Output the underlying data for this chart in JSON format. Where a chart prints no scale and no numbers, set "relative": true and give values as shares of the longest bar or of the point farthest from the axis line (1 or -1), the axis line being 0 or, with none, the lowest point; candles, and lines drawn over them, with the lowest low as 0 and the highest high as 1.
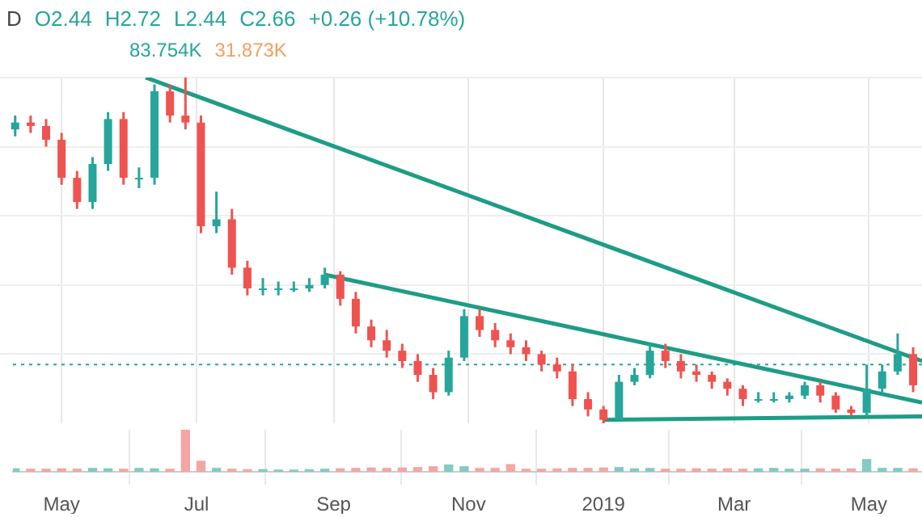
{
  "chart_data": [
    {
      "type": "candlestick",
      "relative": true,
      "grid": true,
      "marker": "none",
      "tick_labels": false,
      "annotations": [
        "D",
        "O2.44",
        "H2.72",
        "L2.44",
        "C2.66",
        "+0.26 (+10.78%)"
      ],
      "xlim": [
        "2018-04-09",
        "2019-05-25"
      ],
      "x": [
        "2018-04-10",
        "2018-04-17",
        "2018-04-24",
        "2018-05-01",
        "2018-05-08",
        "2018-05-15",
        "2018-05-22",
        "2018-05-29",
        "2018-06-05",
        "2018-06-12",
        "2018-06-19",
        "2018-06-26",
        "2018-07-03",
        "2018-07-10",
        "2018-07-17",
        "2018-07-24",
        "2018-07-31",
        "2018-08-07",
        "2018-08-14",
        "2018-08-21",
        "2018-08-28",
        "2018-09-04",
        "2018-09-11",
        "2018-09-18",
        "2018-09-25",
        "2018-10-02",
        "2018-10-09",
        "2018-10-16",
        "2018-10-23",
        "2018-10-30",
        "2018-11-06",
        "2018-11-13",
        "2018-11-20",
        "2018-11-27",
        "2018-12-04",
        "2018-12-11",
        "2018-12-18",
        "2018-12-25",
        "2019-01-01",
        "2019-01-08",
        "2019-01-15",
        "2019-01-22",
        "2019-01-29",
        "2019-02-05",
        "2019-02-12",
        "2019-02-19",
        "2019-02-26",
        "2019-03-05",
        "2019-03-12",
        "2019-03-19",
        "2019-03-26",
        "2019-04-02",
        "2019-04-09",
        "2019-04-16",
        "2019-04-23",
        "2019-04-30",
        "2019-05-07",
        "2019-05-14",
        "2019-05-21"
      ],
      "ohlc": [
        [
          0.85,
          0.89,
          0.83,
          0.87
        ],
        [
          0.87,
          0.89,
          0.84,
          0.86
        ],
        [
          0.86,
          0.88,
          0.8,
          0.82
        ],
        [
          0.82,
          0.84,
          0.69,
          0.71
        ],
        [
          0.71,
          0.73,
          0.62,
          0.64
        ],
        [
          0.64,
          0.77,
          0.62,
          0.75
        ],
        [
          0.75,
          0.9,
          0.73,
          0.88
        ],
        [
          0.88,
          0.9,
          0.69,
          0.71
        ],
        [
          0.71,
          0.74,
          0.68,
          0.71
        ],
        [
          0.71,
          0.98,
          0.69,
          0.96
        ],
        [
          0.96,
          0.98,
          0.87,
          0.89
        ],
        [
          0.89,
          1.0,
          0.85,
          0.87
        ],
        [
          0.87,
          0.89,
          0.55,
          0.57
        ],
        [
          0.57,
          0.67,
          0.55,
          0.59
        ],
        [
          0.59,
          0.62,
          0.43,
          0.45
        ],
        [
          0.45,
          0.47,
          0.37,
          0.39
        ],
        [
          0.39,
          0.42,
          0.37,
          0.39
        ],
        [
          0.39,
          0.41,
          0.37,
          0.39
        ],
        [
          0.39,
          0.41,
          0.38,
          0.39
        ],
        [
          0.39,
          0.42,
          0.38,
          0.4
        ],
        [
          0.4,
          0.45,
          0.39,
          0.43
        ],
        [
          0.43,
          0.44,
          0.34,
          0.36
        ],
        [
          0.36,
          0.38,
          0.26,
          0.28
        ],
        [
          0.28,
          0.3,
          0.22,
          0.24
        ],
        [
          0.24,
          0.27,
          0.19,
          0.21
        ],
        [
          0.21,
          0.23,
          0.16,
          0.18
        ],
        [
          0.18,
          0.2,
          0.12,
          0.14
        ],
        [
          0.14,
          0.16,
          0.07,
          0.09
        ],
        [
          0.09,
          0.21,
          0.08,
          0.19
        ],
        [
          0.19,
          0.33,
          0.18,
          0.31
        ],
        [
          0.31,
          0.33,
          0.25,
          0.27
        ],
        [
          0.27,
          0.29,
          0.22,
          0.24
        ],
        [
          0.24,
          0.26,
          0.2,
          0.22
        ],
        [
          0.22,
          0.24,
          0.18,
          0.2
        ],
        [
          0.2,
          0.21,
          0.15,
          0.17
        ],
        [
          0.17,
          0.19,
          0.13,
          0.15
        ],
        [
          0.15,
          0.17,
          0.05,
          0.07
        ],
        [
          0.07,
          0.09,
          0.02,
          0.04
        ],
        [
          0.04,
          0.05,
          0.0,
          0.01
        ],
        [
          0.01,
          0.14,
          0.01,
          0.12
        ],
        [
          0.12,
          0.16,
          0.11,
          0.14
        ],
        [
          0.14,
          0.23,
          0.13,
          0.21
        ],
        [
          0.21,
          0.23,
          0.16,
          0.18
        ],
        [
          0.18,
          0.2,
          0.13,
          0.15
        ],
        [
          0.15,
          0.17,
          0.12,
          0.14
        ],
        [
          0.14,
          0.15,
          0.1,
          0.12
        ],
        [
          0.12,
          0.13,
          0.08,
          0.1
        ],
        [
          0.1,
          0.11,
          0.05,
          0.07
        ],
        [
          0.07,
          0.09,
          0.06,
          0.07
        ],
        [
          0.07,
          0.09,
          0.06,
          0.07
        ],
        [
          0.07,
          0.09,
          0.06,
          0.08
        ],
        [
          0.08,
          0.12,
          0.07,
          0.11
        ],
        [
          0.11,
          0.12,
          0.06,
          0.08
        ],
        [
          0.08,
          0.09,
          0.03,
          0.04
        ],
        [
          0.04,
          0.05,
          0.02,
          0.03
        ],
        [
          0.03,
          0.17,
          0.02,
          0.1
        ],
        [
          0.1,
          0.17,
          0.09,
          0.15
        ],
        [
          0.15,
          0.26,
          0.14,
          0.2
        ],
        [
          0.2,
          0.22,
          0.09,
          0.11
        ]
      ],
      "ref_lines": [
        {
          "axis": "y",
          "value": 0.17,
          "color": "#26a69a",
          "line_style": "dotted"
        }
      ],
      "series": [
        {
          "type": "line",
          "color": "#1f9c85",
          "x": [
            "2018-06-08",
            "2019-05-25"
          ],
          "values": [
            1.0,
            0.18
          ]
        },
        {
          "type": "line",
          "color": "#1f9c85",
          "x": [
            "2018-08-28",
            "2019-05-25"
          ],
          "values": [
            0.43,
            0.06
          ]
        },
        {
          "type": "line",
          "color": "#1f9c85",
          "x": [
            "2019-01-01",
            "2019-05-25"
          ],
          "values": [
            0.01,
            0.02
          ]
        }
      ]
    },
    {
      "type": "bar",
      "relative": true,
      "grid": "x",
      "tick_labels": "x",
      "annotations": [
        "83.754K",
        "31.873K"
      ],
      "xlim": [
        "2018-04-09",
        "2019-05-25"
      ],
      "xticks": [
        {
          "value": "2018-05-01",
          "label": "May"
        },
        {
          "value": "2018-07-01",
          "label": "Jul"
        },
        {
          "value": "2018-09-01",
          "label": "Sep"
        },
        {
          "value": "2018-11-01",
          "label": "Nov"
        },
        {
          "value": "2019-01-01",
          "label": "2019"
        },
        {
          "value": "2019-03-01",
          "label": "Mar"
        },
        {
          "value": "2019-05-01",
          "label": "May"
        }
      ],
      "x": [
        "2018-04-10",
        "2018-04-17",
        "2018-04-24",
        "2018-05-01",
        "2018-05-08",
        "2018-05-15",
        "2018-05-22",
        "2018-05-29",
        "2018-06-05",
        "2018-06-12",
        "2018-06-19",
        "2018-06-26",
        "2018-07-03",
        "2018-07-10",
        "2018-07-17",
        "2018-07-24",
        "2018-07-31",
        "2018-08-07",
        "2018-08-14",
        "2018-08-21",
        "2018-08-28",
        "2018-09-04",
        "2018-09-11",
        "2018-09-18",
        "2018-09-25",
        "2018-10-02",
        "2018-10-09",
        "2018-10-16",
        "2018-10-23",
        "2018-10-30",
        "2018-11-06",
        "2018-11-13",
        "2018-11-20",
        "2018-11-27",
        "2018-12-04",
        "2018-12-11",
        "2018-12-18",
        "2018-12-25",
        "2019-01-01",
        "2019-01-08",
        "2019-01-15",
        "2019-01-22",
        "2019-01-29",
        "2019-02-05",
        "2019-02-12",
        "2019-02-19",
        "2019-02-26",
        "2019-03-05",
        "2019-03-12",
        "2019-03-19",
        "2019-03-26",
        "2019-04-02",
        "2019-04-09",
        "2019-04-16",
        "2019-04-23",
        "2019-04-30",
        "2019-05-07",
        "2019-05-14",
        "2019-05-21"
      ],
      "values": [
        0.07,
        0.06,
        0.06,
        0.07,
        0.06,
        0.08,
        0.07,
        0.06,
        0.08,
        0.07,
        0.06,
        1.0,
        0.25,
        0.08,
        0.06,
        0.05,
        0.05,
        0.04,
        0.04,
        0.05,
        0.06,
        0.07,
        0.08,
        0.09,
        0.08,
        0.09,
        0.1,
        0.12,
        0.16,
        0.12,
        0.08,
        0.08,
        0.17,
        0.06,
        0.06,
        0.07,
        0.08,
        0.08,
        0.09,
        0.1,
        0.07,
        0.08,
        0.06,
        0.06,
        0.07,
        0.06,
        0.07,
        0.06,
        0.07,
        0.08,
        0.06,
        0.06,
        0.07,
        0.06,
        0.07,
        0.29,
        0.08,
        0.08,
        0.07
      ],
      "colors": [
        "#80cbc4",
        "#f4a6a4",
        "#f4a6a4",
        "#f4a6a4",
        "#f4a6a4",
        "#80cbc4",
        "#80cbc4",
        "#f4a6a4",
        "#80cbc4",
        "#80cbc4",
        "#f4a6a4",
        "#f4a6a4",
        "#f4a6a4",
        "#80cbc4",
        "#f4a6a4",
        "#f4a6a4",
        "#80cbc4",
        "#80cbc4",
        "#80cbc4",
        "#80cbc4",
        "#80cbc4",
        "#f4a6a4",
        "#f4a6a4",
        "#f4a6a4",
        "#f4a6a4",
        "#f4a6a4",
        "#f4a6a4",
        "#f4a6a4",
        "#80cbc4",
        "#80cbc4",
        "#f4a6a4",
        "#f4a6a4",
        "#f4a6a4",
        "#f4a6a4",
        "#f4a6a4",
        "#f4a6a4",
        "#f4a6a4",
        "#f4a6a4",
        "#f4a6a4",
        "#80cbc4",
        "#80cbc4",
        "#80cbc4",
        "#f4a6a4",
        "#f4a6a4",
        "#f4a6a4",
        "#f4a6a4",
        "#f4a6a4",
        "#f4a6a4",
        "#80cbc4",
        "#80cbc4",
        "#80cbc4",
        "#80cbc4",
        "#f4a6a4",
        "#f4a6a4",
        "#f4a6a4",
        "#80cbc4",
        "#80cbc4",
        "#80cbc4",
        "#f4a6a4"
      ]
    }
  ]
}
